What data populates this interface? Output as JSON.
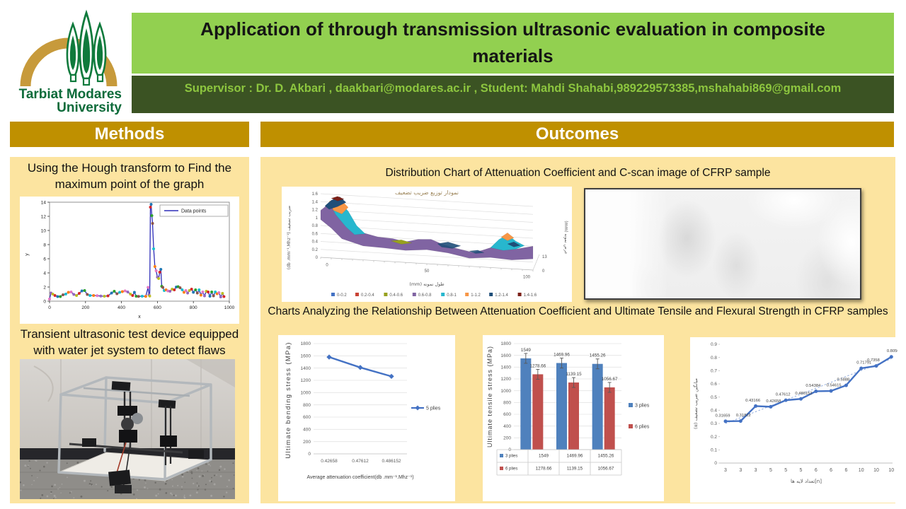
{
  "header": {
    "title": "Application of through transmission ultrasonic evaluation in composite materials",
    "supervisor_line": "Supervisor : Dr. D. Akbari , daakbari@modares.ac.ir , Student: Mahdi Shahabi,989229573385,mshahabi869@gmail.com",
    "logo_line1": "Tarbiat Modares",
    "logo_line2": "University"
  },
  "sections": {
    "methods": "Methods",
    "outcomes": "Outcomes"
  },
  "methods": {
    "caption_hough": "Using the Hough transform to Find the maximum point of the graph",
    "caption_device": "Transient ultrasonic test device equipped with water jet system to detect flaws"
  },
  "outcomes": {
    "caption_distribution": "Distribution Chart of  Attenuation Coefficient and C-scan image of CFRP sample",
    "caption_charts": "Charts Analyzing the Relationship Between Attenuation Coefficient and Ultimate Tensile and Flexural Strength in CFRP samples"
  },
  "colors": {
    "title_green": "#92D050",
    "dark_green": "#3B5323",
    "supervisor_text_green": "#8DC63F",
    "gold": "#BF9000",
    "cream_panel": "#FCE4A0",
    "line_blue": "#4472C4",
    "bar_blue": "#4F81BD",
    "bar_red": "#C0504D",
    "hough_line_blue": "#2D2DB8",
    "logo_gold": "#C79A3B",
    "logo_green": "#0F7A3C"
  },
  "chart_data": [
    {
      "id": "hough-line",
      "type": "line",
      "title": "",
      "xlabel": "x",
      "ylabel": "y",
      "legend": [
        "Data points"
      ],
      "legend_position": "top-right",
      "xlim": [
        0,
        1000
      ],
      "ylim": [
        0,
        14
      ],
      "x_ticks": [
        0,
        200,
        400,
        600,
        800,
        1000
      ],
      "y_ticks": [
        0,
        2,
        4,
        6,
        8,
        10,
        12,
        14
      ],
      "grid": false,
      "points": [
        [
          0,
          0.3
        ],
        [
          8,
          1.15
        ],
        [
          18,
          1.0
        ],
        [
          30,
          0.8
        ],
        [
          45,
          0.65
        ],
        [
          60,
          0.65
        ],
        [
          75,
          0.9
        ],
        [
          90,
          1.0
        ],
        [
          105,
          1.25
        ],
        [
          120,
          1.3
        ],
        [
          135,
          0.95
        ],
        [
          150,
          0.8
        ],
        [
          165,
          1.1
        ],
        [
          180,
          1.45
        ],
        [
          195,
          1.5
        ],
        [
          210,
          0.95
        ],
        [
          225,
          0.8
        ],
        [
          245,
          0.8
        ],
        [
          265,
          0.78
        ],
        [
          285,
          0.72
        ],
        [
          305,
          0.7
        ],
        [
          325,
          0.75
        ],
        [
          345,
          1.15
        ],
        [
          360,
          1.4
        ],
        [
          375,
          1.05
        ],
        [
          390,
          1.25
        ],
        [
          405,
          1.35
        ],
        [
          420,
          1.45
        ],
        [
          435,
          1.3
        ],
        [
          450,
          1.0
        ],
        [
          462,
          0.8
        ],
        [
          472,
          1.25
        ],
        [
          482,
          0.7
        ],
        [
          495,
          0.68
        ],
        [
          515,
          0.7
        ],
        [
          535,
          0.68
        ],
        [
          548,
          1.95
        ],
        [
          553,
          0.9
        ],
        [
          557,
          0.72
        ],
        [
          561,
          13.3
        ],
        [
          565,
          13.7
        ],
        [
          569,
          12.1
        ],
        [
          573,
          11.0
        ],
        [
          579,
          7.4
        ],
        [
          586,
          4.9
        ],
        [
          593,
          4.3
        ],
        [
          600,
          3.4
        ],
        [
          607,
          3.2
        ],
        [
          613,
          4.1
        ],
        [
          619,
          4.5
        ],
        [
          624,
          2.1
        ],
        [
          630,
          1.95
        ],
        [
          638,
          1.5
        ],
        [
          648,
          1.6
        ],
        [
          658,
          1.45
        ],
        [
          670,
          1.4
        ],
        [
          682,
          1.7
        ],
        [
          694,
          1.6
        ],
        [
          705,
          2.0
        ],
        [
          715,
          2.05
        ],
        [
          726,
          1.9
        ],
        [
          738,
          1.6
        ],
        [
          748,
          1.25
        ],
        [
          758,
          1.5
        ],
        [
          768,
          1.15
        ],
        [
          778,
          1.5
        ],
        [
          790,
          1.7
        ],
        [
          800,
          1.25
        ],
        [
          812,
          1.6
        ],
        [
          822,
          1.15
        ],
        [
          832,
          1.6
        ],
        [
          842,
          0.85
        ],
        [
          852,
          1.3
        ],
        [
          862,
          0.75
        ],
        [
          872,
          1.4
        ],
        [
          882,
          1.3
        ],
        [
          892,
          0.7
        ],
        [
          902,
          1.3
        ],
        [
          912,
          0.75
        ],
        [
          922,
          1.3
        ],
        [
          932,
          1.05
        ],
        [
          942,
          1.2
        ],
        [
          952,
          0.6
        ],
        [
          962,
          1.1
        ],
        [
          970,
          0.65
        ]
      ]
    },
    {
      "id": "attenuation-surface",
      "type": "area",
      "subtype": "3d-surface",
      "title": "نمودار توزیع ضریب تضعیف",
      "ylabel": "(db .mm⁻¹.Mhz⁻¹) ضریب تضعیف",
      "xlabel": "(mm) طول نمونه",
      "zlabel": "(mm) عرض نمونه",
      "y_ticks": [
        "0",
        "0.2",
        "0.4",
        "0.6",
        "0.8",
        "1",
        "1.2",
        "1.4",
        "1.6"
      ],
      "x_ticks": [
        "0",
        "50",
        "100"
      ],
      "z_ticks": [
        "13",
        "0"
      ],
      "ylim": [
        0,
        1.6
      ],
      "legend_position": "bottom",
      "legend": [
        "0-0.2",
        "0.2-0.4",
        "0.4-0.6",
        "0.6-0.8",
        "0.8-1",
        "1-1.2",
        "1.2-1.4",
        "1.4-1.6"
      ],
      "legend_colors": [
        "#4472C4",
        "#C94335",
        "#97A11E",
        "#8064A2",
        "#27B7CE",
        "#F79646",
        "#1F4E79",
        "#7B2018"
      ]
    },
    {
      "id": "bending-line",
      "type": "line",
      "categories": [
        "0.42658",
        "0.47612",
        "0.486152"
      ],
      "series": [
        {
          "name": "5 plies",
          "color": "#4472C4",
          "values": [
            1580,
            1410,
            1265
          ]
        }
      ],
      "ylabel": "Ultimate bending  stress (MPa)",
      "xlabel": "Average attenuation coefficient(db .mm⁻¹.Mhz⁻¹)",
      "ylim": [
        0,
        1800
      ],
      "ytick_step": 200,
      "grid": true,
      "legend_position": "right"
    },
    {
      "id": "tensile-bars",
      "type": "bar",
      "categories": [
        "",
        "",
        ""
      ],
      "series": [
        {
          "name": "3 plies",
          "color": "#4F81BD",
          "values": [
            1549,
            1469.96,
            1455.26
          ]
        },
        {
          "name": "6 plies",
          "color": "#C0504D",
          "values": [
            1278.66,
            1139.15,
            1056.67
          ]
        }
      ],
      "ylabel": "Ultimate tensile stress (MPa)",
      "xlabel": "",
      "ylim": [
        0,
        1800
      ],
      "ytick_step": 200,
      "grid": true,
      "error_bars": true,
      "data_table": true,
      "legend_position": "right"
    },
    {
      "id": "attenuation-vs-layers",
      "type": "line",
      "categories": [
        "3",
        "3",
        "3",
        "5",
        "5",
        "5",
        "6",
        "6",
        "6",
        "10",
        "10",
        "10"
      ],
      "values": [
        0.31659,
        0.31822,
        0.43166,
        0.42658,
        0.47612,
        0.486152,
        0.54384,
        0.54615,
        0.5888,
        0.71791,
        0.7358,
        0.80508
      ],
      "point_labels": [
        "0.31659",
        "0.31822",
        "0.43166",
        "0.42658",
        "0.47612",
        "0.486152",
        "0.54384",
        "0.54615",
        "0.5888",
        "0.71791",
        "0.7358",
        "0.80508"
      ],
      "ylabel": "(α) میانگین ضریب تضعیف",
      "xlabel": "تعداد لایه ها[n]",
      "ylim": [
        0,
        0.9
      ],
      "ytick_step": 0.1,
      "grid": false,
      "trendline": true
    }
  ]
}
